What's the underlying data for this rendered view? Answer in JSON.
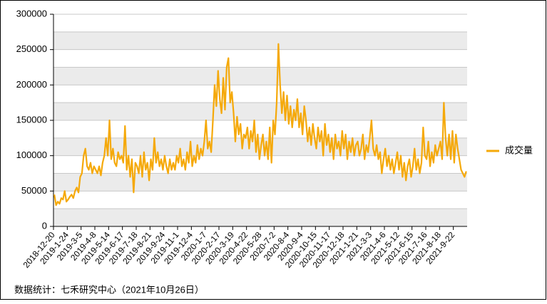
{
  "chart_data": {
    "type": "line",
    "source": "数据统计：七禾研究中心（2021年10月26日）",
    "categories": [
      "2018-12-20",
      null,
      null,
      null,
      null,
      null,
      null,
      null,
      "2019-1-24",
      null,
      null,
      null,
      null,
      null,
      null,
      null,
      "2019-3-5",
      null,
      null,
      null,
      null,
      null,
      null,
      null,
      "2019-4-8",
      null,
      null,
      null,
      null,
      null,
      null,
      null,
      "2019-5-14",
      null,
      null,
      null,
      null,
      null,
      null,
      null,
      "2019-6-17",
      null,
      null,
      null,
      null,
      null,
      null,
      null,
      "2019-7-18",
      null,
      null,
      null,
      null,
      null,
      null,
      null,
      "2019-8-21",
      null,
      null,
      null,
      null,
      null,
      null,
      null,
      "2019-9-24",
      null,
      null,
      null,
      null,
      null,
      null,
      null,
      "2019-11-1",
      null,
      null,
      null,
      null,
      null,
      null,
      null,
      "2019-12-4",
      null,
      null,
      null,
      null,
      null,
      null,
      null,
      "2020-1-7",
      null,
      null,
      null,
      null,
      null,
      null,
      null,
      "2020-2-17",
      null,
      null,
      null,
      null,
      null,
      null,
      null,
      "2020-3-19",
      null,
      null,
      null,
      null,
      null,
      null,
      null,
      "2020-4-22",
      null,
      null,
      null,
      null,
      null,
      null,
      null,
      "2020-5-28",
      null,
      null,
      null,
      null,
      null,
      null,
      null,
      "2020-7-2",
      null,
      null,
      null,
      null,
      null,
      null,
      null,
      "2020-8-4",
      null,
      null,
      null,
      null,
      null,
      null,
      null,
      "2020-9-4",
      null,
      null,
      null,
      null,
      null,
      null,
      null,
      "2020-10-15",
      null,
      null,
      null,
      null,
      null,
      null,
      null,
      "2020-11-17",
      null,
      null,
      null,
      null,
      null,
      null,
      null,
      "2020-12-18",
      null,
      null,
      null,
      null,
      null,
      null,
      null,
      "2021-1-21",
      null,
      null,
      null,
      null,
      null,
      null,
      null,
      "2021-3-3",
      null,
      null,
      null,
      null,
      null,
      null,
      null,
      "2021-4-6",
      null,
      null,
      null,
      null,
      null,
      null,
      null,
      "2021-5-12",
      null,
      null,
      null,
      null,
      null,
      null,
      null,
      "2021-6-15",
      null,
      null,
      null,
      null,
      null,
      null,
      null,
      "2021-7-16",
      null,
      null,
      null,
      null,
      null,
      null,
      null,
      "2021-8-18",
      null,
      null,
      null,
      null,
      null,
      null,
      null,
      "2021-9-22",
      null,
      null,
      null,
      null,
      null,
      null,
      null
    ],
    "series": [
      {
        "name": "成交量",
        "color": "#f5a90a",
        "values": [
          45000,
          30000,
          35000,
          32000,
          40000,
          38000,
          50000,
          35000,
          38000,
          42000,
          45000,
          40000,
          50000,
          55000,
          48000,
          70000,
          75000,
          100000,
          110000,
          85000,
          80000,
          90000,
          75000,
          85000,
          80000,
          75000,
          85000,
          72000,
          90000,
          100000,
          125000,
          100000,
          150000,
          95000,
          110000,
          90000,
          85000,
          105000,
          95000,
          100000,
          90000,
          142000,
          80000,
          100000,
          70000,
          95000,
          48000,
          90000,
          85000,
          75000,
          100000,
          70000,
          105000,
          80000,
          90000,
          65000,
          95000,
          80000,
          125000,
          90000,
          105000,
          85000,
          95000,
          80000,
          100000,
          85000,
          75000,
          95000,
          80000,
          90000,
          80000,
          100000,
          90000,
          110000,
          85000,
          95000,
          80000,
          105000,
          90000,
          120000,
          85000,
          100000,
          90000,
          115000,
          95000,
          110000,
          100000,
          120000,
          150000,
          110000,
          120000,
          105000,
          150000,
          200000,
          170000,
          220000,
          180000,
          160000,
          210000,
          165000,
          225000,
          238000,
          175000,
          190000,
          160000,
          120000,
          155000,
          130000,
          145000,
          110000,
          130000,
          125000,
          140000,
          110000,
          135000,
          120000,
          150000,
          105000,
          130000,
          95000,
          115000,
          130000,
          100000,
          120000,
          95000,
          140000,
          90000,
          150000,
          130000,
          175000,
          258000,
          200000,
          160000,
          190000,
          150000,
          185000,
          145000,
          170000,
          140000,
          165000,
          150000,
          180000,
          140000,
          160000,
          130000,
          170000,
          150000,
          120000,
          140000,
          115000,
          145000,
          125000,
          110000,
          140000,
          120000,
          135000,
          100000,
          145000,
          115000,
          130000,
          105000,
          125000,
          95000,
          130000,
          110000,
          120000,
          100000,
          135000,
          110000,
          130000,
          95000,
          120000,
          105000,
          125000,
          100000,
          115000,
          120000,
          100000,
          110000,
          130000,
          95000,
          115000,
          105000,
          125000,
          150000,
          110000,
          100000,
          115000,
          95000,
          105000,
          75000,
          95000,
          110000,
          85000,
          100000,
          80000,
          95000,
          75000,
          90000,
          105000,
          80000,
          100000,
          70000,
          90000,
          65000,
          85000,
          95000,
          70000,
          85000,
          110000,
          80000,
          95000,
          75000,
          90000,
          140000,
          100000,
          95000,
          120000,
          85000,
          105000,
          90000,
          115000,
          100000,
          110000,
          120000,
          95000,
          175000,
          125000,
          100000,
          130000,
          95000,
          135000,
          90000,
          130000,
          110000,
          95000,
          80000,
          75000,
          70000,
          78000
        ]
      }
    ],
    "ylim": [
      0,
      300000
    ],
    "yticks": [
      0,
      50000,
      100000,
      150000,
      200000,
      250000,
      300000
    ],
    "grid": true,
    "legend": "right"
  }
}
